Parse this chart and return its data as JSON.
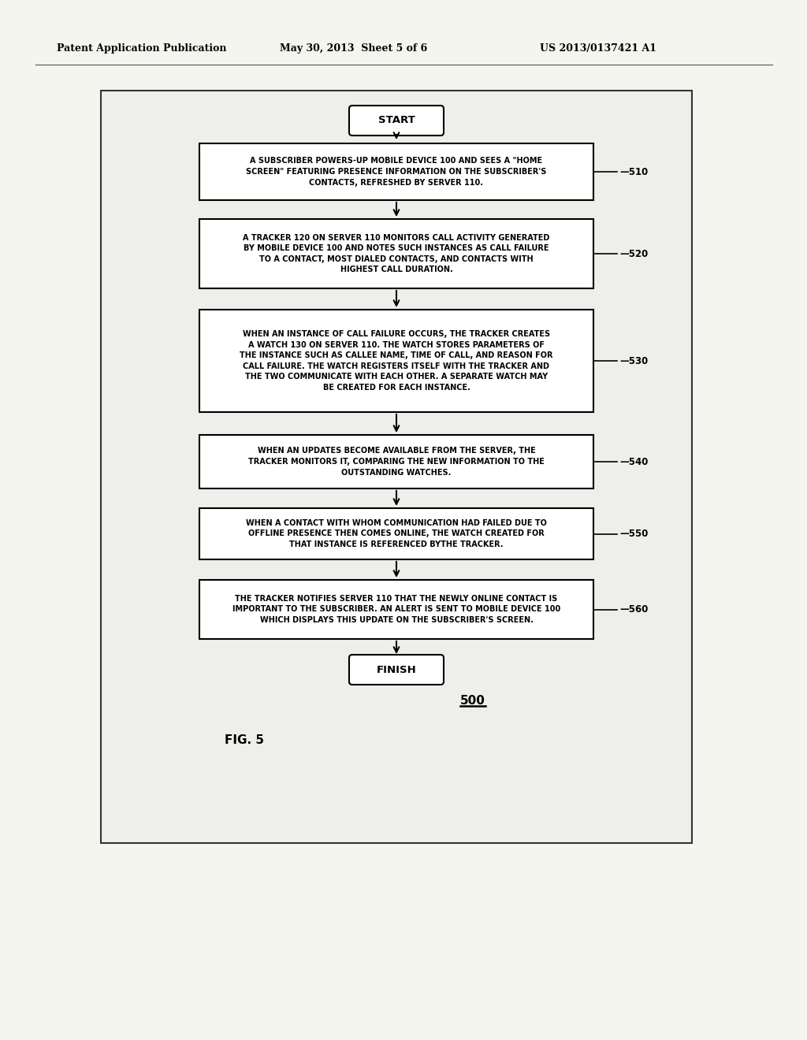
{
  "header_left": "Patent Application Publication",
  "header_mid": "May 30, 2013  Sheet 5 of 6",
  "header_right": "US 2013/0137421 A1",
  "fig_label": "FIG. 5",
  "fig_number": "500",
  "start_text": "START",
  "finish_text": "FINISH",
  "boxes": [
    {
      "id": "510",
      "label": "510",
      "text": "A SUBSCRIBER POWERS-UP MOBILE DEVICE 100 AND SEES A \"HOME\nSCREEN\" FEATURING PRESENCE INFORMATION ON THE SUBSCRIBER'S\nCONTACTS, REFRESHED BY SERVER 110."
    },
    {
      "id": "520",
      "label": "520",
      "text": "A TRACKER 120 ON SERVER 110 MONITORS CALL ACTIVITY GENERATED\nBY MOBILE DEVICE 100 AND NOTES SUCH INSTANCES AS CALL FAILURE\nTO A CONTACT, MOST DIALED CONTACTS, AND CONTACTS WITH\nHIGHEST CALL DURATION."
    },
    {
      "id": "530",
      "label": "530",
      "text": "WHEN AN INSTANCE OF CALL FAILURE OCCURS, THE TRACKER CREATES\nA WATCH 130 ON SERVER 110. THE WATCH STORES PARAMETERS OF\nTHE INSTANCE SUCH AS CALLEE NAME, TIME OF CALL, AND REASON FOR\nCALL FAILURE. THE WATCH REGISTERS ITSELF WITH THE TRACKER AND\nTHE TWO COMMUNICATE WITH EACH OTHER. A SEPARATE WATCH MAY\nBE CREATED FOR EACH INSTANCE."
    },
    {
      "id": "540",
      "label": "540",
      "text": "WHEN AN UPDATES BECOME AVAILABLE FROM THE SERVER, THE\nTRACKER MONITORS IT, COMPARING THE NEW INFORMATION TO THE\nOUTSTANDING WATCHES."
    },
    {
      "id": "550",
      "label": "550",
      "text": "WHEN A CONTACT WITH WHOM COMMUNICATION HAD FAILED DUE TO\nOFFLINE PRESENCE THEN COMES ONLINE, THE WATCH CREATED FOR\nTHAT INSTANCE IS REFERENCED BYTHE TRACKER."
    },
    {
      "id": "560",
      "label": "560",
      "text": "THE TRACKER NOTIFIES SERVER 110 THAT THE NEWLY ONLINE CONTACT IS\nIMPORTANT TO THE SUBSCRIBER. AN ALERT IS SENT TO MOBILE DEVICE 100\nWHICH DISPLAYS THIS UPDATE ON THE SUBSCRIBER'S SCREEN."
    }
  ],
  "bg_color": "#f5f5f0",
  "box_bg": "#ffffff",
  "box_edge_color": "#000000",
  "text_color": "#000000",
  "arrow_color": "#000000",
  "outer_bg": "#e8e8e0"
}
